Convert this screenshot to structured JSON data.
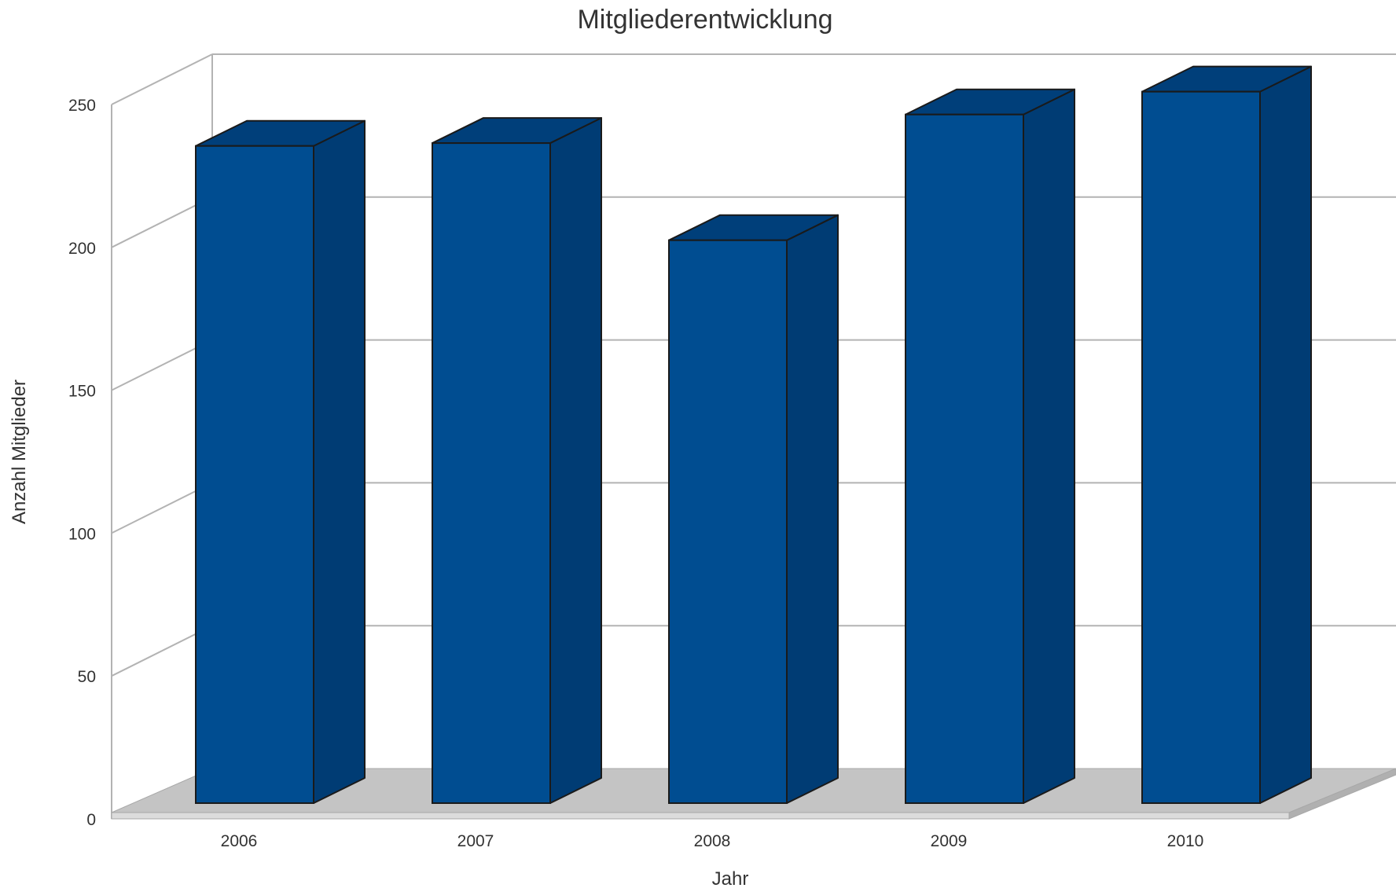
{
  "chart_data": {
    "type": "bar",
    "title": "Mitgliederentwicklung",
    "xlabel": "Jahr",
    "ylabel": "Anzahl Mitglieder",
    "categories": [
      "2006",
      "2007",
      "2008",
      "2009",
      "2010"
    ],
    "values": [
      230,
      231,
      197,
      241,
      249
    ],
    "yticks": [
      "0",
      "50",
      "100",
      "150",
      "200",
      "250"
    ],
    "ylim": [
      0,
      250
    ],
    "grid": true,
    "legend": "none",
    "style": "3d",
    "colors": {
      "bar_front": "#004D91",
      "bar_side": "#003C74",
      "bar_top": "#003F7A",
      "bar_outline": "#1a1a1a",
      "gridline": "#b3b3b3",
      "floor": "#c4c4c4"
    }
  }
}
